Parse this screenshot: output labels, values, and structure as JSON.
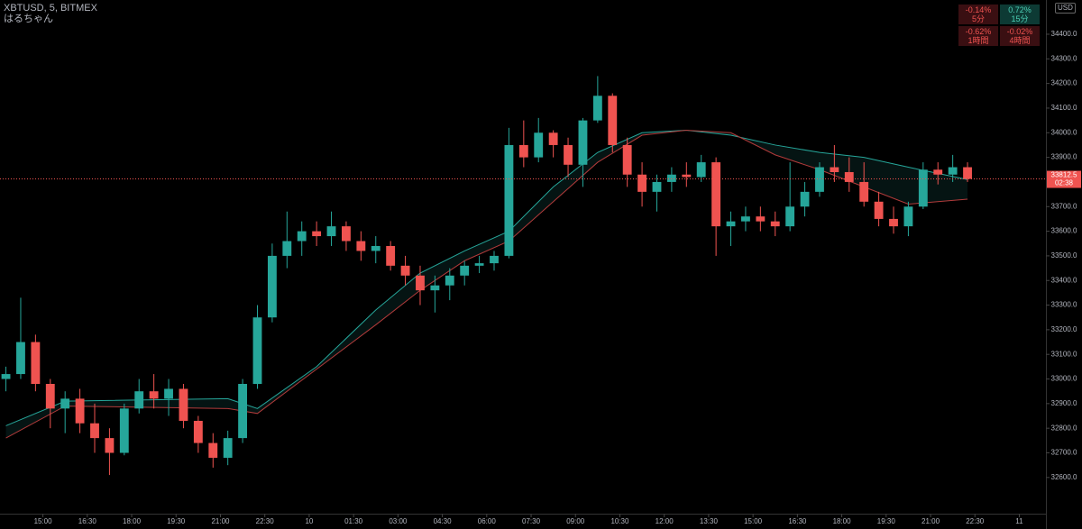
{
  "chart_data": {
    "type": "candlestick",
    "title": "XBTUSD, 5, BITMEX",
    "subtitle": "はるちゃん",
    "currency": "USD",
    "up_color": "#26a69a",
    "down_color": "#ef5350",
    "open": [
      33000,
      33020,
      33150,
      32980,
      32880,
      32920,
      32820,
      32760,
      32700,
      32880,
      32950,
      32920,
      32960,
      32830,
      32740,
      32680,
      32760,
      32980,
      33250,
      33500,
      33560,
      33600,
      33580,
      33620,
      33560,
      33520,
      33540,
      33460,
      33420,
      33360,
      33380,
      33420,
      33460,
      33470,
      33500,
      33950,
      33900,
      34000,
      33950,
      33870,
      34050,
      34150,
      33950,
      33830,
      33760,
      33800,
      33830,
      33820,
      33880,
      33620,
      33640,
      33660,
      33640,
      33620,
      33700,
      33760,
      33860,
      33840,
      33800,
      33720,
      33650,
      33620,
      33700,
      33850,
      33830,
      33860
    ],
    "high": [
      33050,
      33330,
      33180,
      33000,
      32950,
      32960,
      32900,
      32800,
      32900,
      33000,
      33020,
      33000,
      32980,
      32850,
      32780,
      32790,
      33000,
      33300,
      33550,
      33680,
      33640,
      33640,
      33680,
      33640,
      33600,
      33580,
      33560,
      33500,
      33460,
      33420,
      33450,
      33480,
      33500,
      33520,
      34020,
      34050,
      34060,
      34010,
      33980,
      34060,
      34230,
      34160,
      33980,
      33880,
      33830,
      33860,
      33880,
      33910,
      33900,
      33680,
      33700,
      33700,
      33680,
      33880,
      33800,
      33880,
      33950,
      33900,
      33880,
      33760,
      33700,
      33720,
      33880,
      33880,
      33910,
      33880
    ],
    "low": [
      32950,
      33000,
      32950,
      32800,
      32780,
      32780,
      32700,
      32610,
      32690,
      32860,
      32880,
      32850,
      32800,
      32700,
      32640,
      32650,
      32740,
      32960,
      33230,
      33450,
      33500,
      33540,
      33540,
      33520,
      33480,
      33470,
      33440,
      33380,
      33300,
      33270,
      33320,
      33380,
      33430,
      33440,
      33490,
      33860,
      33880,
      33900,
      33820,
      33780,
      34040,
      33920,
      33780,
      33700,
      33680,
      33760,
      33780,
      33800,
      33500,
      33540,
      33600,
      33600,
      33580,
      33600,
      33660,
      33740,
      33800,
      33760,
      33700,
      33620,
      33590,
      33580,
      33690,
      33790,
      33800,
      33800
    ],
    "close": [
      33020,
      33150,
      32980,
      32880,
      32920,
      32820,
      32760,
      32700,
      32880,
      32950,
      32920,
      32960,
      32830,
      32740,
      32680,
      32760,
      32980,
      33250,
      33500,
      33560,
      33600,
      33580,
      33620,
      33560,
      33520,
      33540,
      33460,
      33420,
      33360,
      33380,
      33420,
      33460,
      33470,
      33500,
      33950,
      33900,
      34000,
      33950,
      33870,
      34050,
      34150,
      33950,
      33830,
      33760,
      33800,
      33830,
      33820,
      33880,
      33620,
      33640,
      33660,
      33640,
      33620,
      33700,
      33760,
      33860,
      33840,
      33800,
      33720,
      33650,
      33620,
      33700,
      33850,
      33830,
      33860,
      33812.5
    ],
    "moving_averages": {
      "x": [
        0,
        4,
        15,
        17,
        21,
        25,
        28,
        31,
        34,
        37,
        40,
        43,
        46,
        49,
        52,
        55,
        58,
        61,
        65
      ],
      "series": [
        {
          "color": "#26a69a",
          "values": [
            32810,
            32910,
            32920,
            32880,
            33050,
            33280,
            33430,
            33520,
            33600,
            33780,
            33920,
            34000,
            34010,
            33990,
            33950,
            33920,
            33900,
            33860,
            33810
          ]
        },
        {
          "color": "#b23b3b",
          "values": [
            32760,
            32890,
            32880,
            32860,
            33040,
            33220,
            33360,
            33480,
            33560,
            33720,
            33880,
            33990,
            34010,
            34000,
            33910,
            33850,
            33780,
            33710,
            33730
          ]
        }
      ]
    },
    "last_price": 33812.5,
    "countdown": "02:38",
    "xlim": [
      -0.4,
      70.3
    ],
    "xticks": [
      {
        "value": 2.5,
        "label": "15:00"
      },
      {
        "value": 5.5,
        "label": "16:30"
      },
      {
        "value": 8.5,
        "label": "18:00"
      },
      {
        "value": 11.5,
        "label": "19:30"
      },
      {
        "value": 14.5,
        "label": "21:00"
      },
      {
        "value": 17.5,
        "label": "22:30"
      },
      {
        "value": 20.5,
        "label": "10"
      },
      {
        "value": 23.5,
        "label": "01:30"
      },
      {
        "value": 26.5,
        "label": "03:00"
      },
      {
        "value": 29.5,
        "label": "04:30"
      },
      {
        "value": 32.5,
        "label": "06:00"
      },
      {
        "value": 35.5,
        "label": "07:30"
      },
      {
        "value": 38.5,
        "label": "09:00"
      },
      {
        "value": 41.5,
        "label": "10:30"
      },
      {
        "value": 44.5,
        "label": "12:00"
      },
      {
        "value": 47.5,
        "label": "13:30"
      },
      {
        "value": 50.5,
        "label": "15:00"
      },
      {
        "value": 53.5,
        "label": "16:30"
      },
      {
        "value": 56.5,
        "label": "18:00"
      },
      {
        "value": 59.5,
        "label": "19:30"
      },
      {
        "value": 62.5,
        "label": "21:00"
      },
      {
        "value": 65.5,
        "label": "22:30"
      },
      {
        "value": 68.5,
        "label": "11"
      }
    ],
    "ylim": [
      32453,
      34539
    ],
    "yticks": [
      {
        "value": 34400,
        "label": "34400.0"
      },
      {
        "value": 34300,
        "label": "34300.0"
      },
      {
        "value": 34200,
        "label": "34200.0"
      },
      {
        "value": 34100,
        "label": "34100.0"
      },
      {
        "value": 34000,
        "label": "34000.0"
      },
      {
        "value": 33900,
        "label": "33900.0"
      },
      {
        "value": 33700,
        "label": "33700.0"
      },
      {
        "value": 33600,
        "label": "33600.0"
      },
      {
        "value": 33500,
        "label": "33500.0"
      },
      {
        "value": 33400,
        "label": "33400.0"
      },
      {
        "value": 33300,
        "label": "33300.0"
      },
      {
        "value": 33200,
        "label": "33200.0"
      },
      {
        "value": 33100,
        "label": "33100.0"
      },
      {
        "value": 33000,
        "label": "33000.0"
      },
      {
        "value": 32900,
        "label": "32900.0"
      },
      {
        "value": 32800,
        "label": "32800.0"
      },
      {
        "value": 32700,
        "label": "32700.0"
      },
      {
        "value": 32600,
        "label": "32600.0"
      }
    ]
  },
  "widget": [
    {
      "change": "-0.14%",
      "period": "5分"
    },
    {
      "change": "0.72%",
      "period": "15分"
    },
    {
      "change": "-0.62%",
      "period": "1時間"
    },
    {
      "change": "-0.02%",
      "period": "4時間"
    }
  ]
}
